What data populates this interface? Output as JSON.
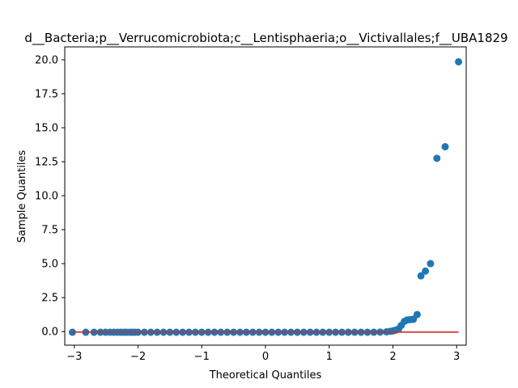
{
  "chart_data": {
    "type": "scatter",
    "title": "d__Bacteria;p__Verrucomicrobiota;c__Lentisphaeria;o__Victivallales;f__UBA1829",
    "xlabel": "Theoretical Quantiles",
    "ylabel": "Sample Quantiles",
    "xlim": [
      -3.15,
      3.15
    ],
    "ylim": [
      -1.0,
      20.95
    ],
    "xticks": [
      -3,
      -2,
      -1,
      0,
      1,
      2,
      3
    ],
    "xtick_labels": [
      "−3",
      "−2",
      "−1",
      "0",
      "1",
      "2",
      "3"
    ],
    "yticks": [
      0.0,
      2.5,
      5.0,
      7.5,
      10.0,
      12.5,
      15.0,
      17.5,
      20.0
    ],
    "ytick_labels": [
      "0.0",
      "2.5",
      "5.0",
      "7.5",
      "10.0",
      "12.5",
      "15.0",
      "17.5",
      "20.0"
    ],
    "grid": false,
    "point_color": "#1f77b4",
    "reference_line": {
      "color": "#d62728",
      "x": [
        -3.03,
        3.03
      ],
      "y": [
        -0.04,
        -0.04
      ]
    },
    "points": {
      "x": [
        -3.03,
        -2.82,
        -2.69,
        -2.59,
        -2.51,
        -2.44,
        -2.38,
        -2.32,
        -2.27,
        -2.22,
        -2.18,
        -2.13,
        -2.09,
        -2.05,
        -2.0,
        -1.9,
        -1.8,
        -1.7,
        -1.6,
        -1.5,
        -1.4,
        -1.3,
        -1.2,
        -1.1,
        -1.0,
        -0.9,
        -0.8,
        -0.7,
        -0.6,
        -0.5,
        -0.4,
        -0.3,
        -0.2,
        -0.1,
        0.0,
        0.1,
        0.2,
        0.3,
        0.4,
        0.5,
        0.6,
        0.7,
        0.8,
        0.9,
        1.0,
        1.1,
        1.2,
        1.3,
        1.4,
        1.5,
        1.6,
        1.7,
        1.8,
        1.9,
        1.96,
        2.0,
        2.04,
        2.09,
        2.13,
        2.18,
        2.22,
        2.27,
        2.32,
        2.38,
        2.44,
        2.51,
        2.59,
        2.69,
        2.82,
        3.03
      ],
      "y": [
        -0.05,
        -0.05,
        -0.05,
        -0.05,
        -0.05,
        -0.05,
        -0.05,
        -0.05,
        -0.05,
        -0.05,
        -0.05,
        -0.05,
        -0.05,
        -0.05,
        -0.05,
        -0.05,
        -0.05,
        -0.05,
        -0.05,
        -0.05,
        -0.05,
        -0.05,
        -0.05,
        -0.05,
        -0.05,
        -0.05,
        -0.05,
        -0.05,
        -0.05,
        -0.05,
        -0.05,
        -0.05,
        -0.05,
        -0.05,
        -0.05,
        -0.05,
        -0.05,
        -0.05,
        -0.05,
        -0.05,
        -0.05,
        -0.05,
        -0.05,
        -0.05,
        -0.05,
        -0.05,
        -0.05,
        -0.05,
        -0.05,
        -0.05,
        -0.05,
        -0.05,
        -0.04,
        -0.02,
        0.02,
        0.05,
        0.1,
        0.2,
        0.45,
        0.75,
        0.85,
        0.88,
        0.9,
        1.25,
        4.1,
        4.45,
        5.0,
        12.75,
        13.6,
        19.85
      ]
    }
  }
}
